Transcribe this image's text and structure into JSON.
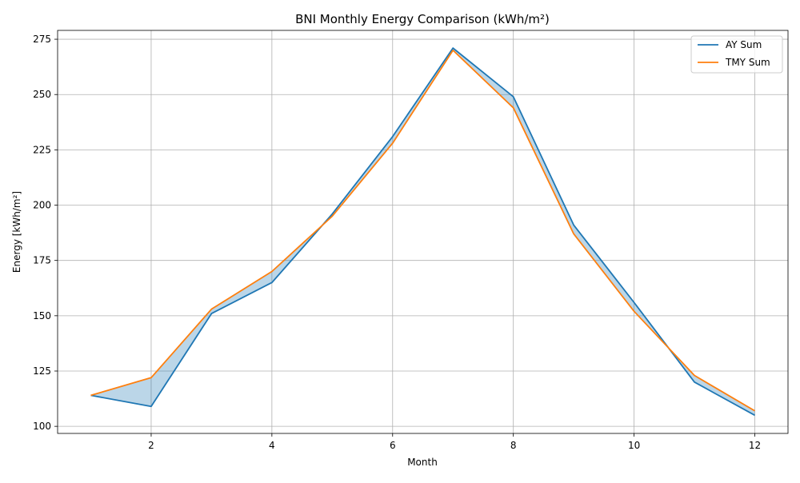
{
  "chart_data": {
    "type": "line",
    "title": "BNI Monthly Energy Comparison (kWh/m²)",
    "xlabel": "Month",
    "ylabel": "Energy [kWh/m²]",
    "x": [
      1,
      2,
      3,
      4,
      5,
      6,
      7,
      8,
      9,
      10,
      11,
      12
    ],
    "series": [
      {
        "name": "AY Sum",
        "color": "#1f77b4",
        "values": [
          114,
          109,
          151,
          165,
          196,
          231,
          271,
          249,
          191,
          156,
          120,
          105
        ]
      },
      {
        "name": "TMY Sum",
        "color": "#ff7f0e",
        "values": [
          114,
          122,
          153,
          170,
          195,
          228,
          270,
          244,
          187,
          152,
          123,
          107
        ]
      }
    ],
    "fill_between": {
      "color": "#1f77b4",
      "opacity": 0.3
    },
    "xlim": [
      0.45,
      12.55
    ],
    "ylim": [
      96.8,
      279.0
    ],
    "xticks": [
      2,
      4,
      6,
      8,
      10,
      12
    ],
    "yticks": [
      100,
      125,
      150,
      175,
      200,
      225,
      250,
      275
    ],
    "grid": true,
    "legend_position": "top-right"
  }
}
